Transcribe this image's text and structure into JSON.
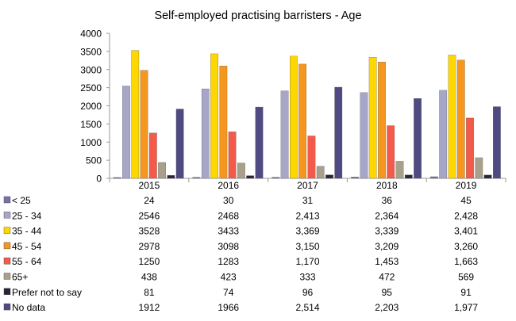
{
  "chart_data": {
    "type": "bar",
    "title": "Self-employed practising barristers - Age",
    "categories": [
      "2015",
      "2016",
      "2017",
      "2018",
      "2019"
    ],
    "ylim": [
      0,
      4000
    ],
    "yticks": [
      0,
      500,
      1000,
      1500,
      2000,
      2500,
      3000,
      3500,
      4000
    ],
    "grid": false,
    "legend": "data table below chart",
    "series": [
      {
        "name": "< 25",
        "color": "#7b6fa8",
        "values": [
          24,
          30,
          31,
          36,
          45
        ],
        "labels": [
          "24",
          "30",
          "31",
          "36",
          "45"
        ]
      },
      {
        "name": "25 - 34",
        "color": "#a6a6c8",
        "values": [
          2546,
          2468,
          2413,
          2364,
          2428
        ],
        "labels": [
          "2546",
          "2468",
          "2,413",
          "2,364",
          "2,428"
        ]
      },
      {
        "name": "35 - 44",
        "color": "#ffd700",
        "values": [
          3528,
          3433,
          3369,
          3339,
          3401
        ],
        "labels": [
          "3528",
          "3433",
          "3,369",
          "3,339",
          "3,401"
        ]
      },
      {
        "name": "45 - 54",
        "color": "#f5961e",
        "values": [
          2978,
          3098,
          3150,
          3209,
          3260
        ],
        "labels": [
          "2978",
          "3098",
          "3,150",
          "3,209",
          "3,260"
        ]
      },
      {
        "name": "55 - 64",
        "color": "#f45a4a",
        "values": [
          1250,
          1283,
          1170,
          1453,
          1663
        ],
        "labels": [
          "1250",
          "1283",
          "1,170",
          "1,453",
          "1,663"
        ]
      },
      {
        "name": "65+",
        "color": "#a8a08a",
        "values": [
          438,
          423,
          333,
          472,
          569
        ],
        "labels": [
          "438",
          "423",
          "333",
          "472",
          "569"
        ]
      },
      {
        "name": "Prefer not to say",
        "color": "#2b2438",
        "values": [
          81,
          74,
          96,
          95,
          91
        ],
        "labels": [
          "81",
          "74",
          "96",
          "95",
          "91"
        ]
      },
      {
        "name": "No data",
        "color": "#4f4a82",
        "values": [
          1912,
          1966,
          2514,
          2203,
          1977
        ],
        "labels": [
          "1912",
          "1966",
          "2,514",
          "2,203",
          "1,977"
        ]
      }
    ]
  }
}
